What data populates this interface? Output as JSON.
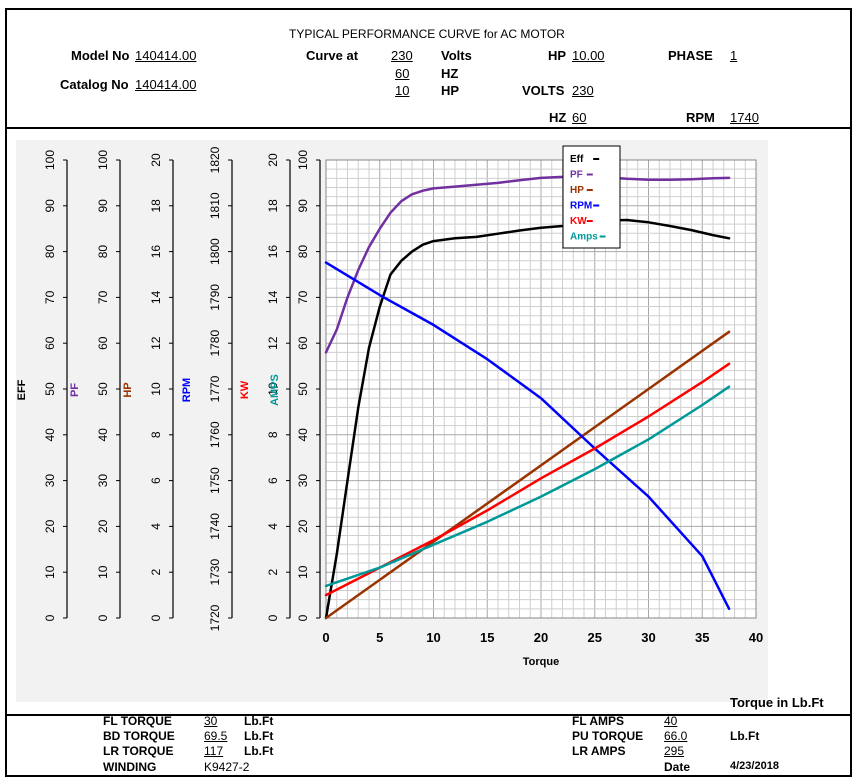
{
  "header": {
    "title": "TYPICAL PERFORMANCE CURVE for AC MOTOR",
    "model_label": "Model No",
    "model_value": "140414.00",
    "catalog_label": "Catalog No",
    "catalog_value": "140414.00",
    "curve_at_label": "Curve at",
    "curve_volts_value": "230",
    "curve_volts_unit": "Volts",
    "curve_hz_value": "60",
    "curve_hz_unit": "HZ",
    "curve_hp_value": "10",
    "curve_hp_unit": "HP",
    "hp_label": "HP",
    "hp_value": "10.00",
    "phase_label": "PHASE",
    "phase_value": "1",
    "volts_label": "VOLTS",
    "volts_value": "230",
    "hz_label": "HZ",
    "hz_value": "60",
    "rpm_label": "RPM",
    "rpm_value": "1740"
  },
  "footer": {
    "fl_torque_label": "FL TORQUE",
    "fl_torque_value": "30",
    "fl_torque_unit": "Lb.Ft",
    "bd_torque_label": "BD TORQUE",
    "bd_torque_value": "69.5",
    "bd_torque_unit": "Lb.Ft",
    "lr_torque_label": "LR TORQUE",
    "lr_torque_value": "117",
    "lr_torque_unit": "Lb.Ft",
    "winding_label": "WINDING",
    "winding_value": "K9427-2",
    "fl_amps_label": "FL AMPS",
    "fl_amps_value": "40",
    "pu_torque_label": "PU TORQUE",
    "pu_torque_value": "66.0",
    "pu_torque_unit": "Lb.Ft",
    "lr_amps_label": "LR AMPS",
    "lr_amps_value": "295",
    "date_label": "Date",
    "date_value": "4/23/2018"
  },
  "torque_note": "Torque in Lb.Ft",
  "chart_data": {
    "type": "line",
    "xlabel": "Torque",
    "xlim": [
      0,
      40
    ],
    "x_ticks": [
      "0",
      "5",
      "10",
      "15",
      "20",
      "25",
      "30",
      "35",
      "40"
    ],
    "grid": true,
    "legend_position": "top-center",
    "axes": [
      {
        "label": "EFF",
        "color": "#000000",
        "min": 0,
        "max": 100,
        "ticks": [
          "0",
          "10",
          "20",
          "30",
          "40",
          "50",
          "60",
          "70",
          "80",
          "90",
          "100"
        ]
      },
      {
        "label": "PF",
        "color": "#7030a0",
        "min": 0,
        "max": 100,
        "ticks": [
          "0",
          "10",
          "20",
          "30",
          "40",
          "50",
          "60",
          "70",
          "80",
          "90",
          "100"
        ]
      },
      {
        "label": "HP",
        "color": "#993300",
        "min": 0,
        "max": 20,
        "ticks": [
          "0",
          "2",
          "4",
          "6",
          "8",
          "10",
          "12",
          "14",
          "16",
          "18",
          "20"
        ]
      },
      {
        "label": "RPM",
        "color": "#0000ff",
        "min": 1720,
        "max": 1820,
        "ticks": [
          "1720",
          "1730",
          "1740",
          "1750",
          "1760",
          "1770",
          "1780",
          "1790",
          "1800",
          "1810",
          "1820"
        ]
      },
      {
        "label": "KW",
        "color": "#ff0000",
        "min": 0,
        "max": 20,
        "ticks": [
          "0",
          "2",
          "4",
          "6",
          "8",
          "10",
          "12",
          "14",
          "16",
          "18",
          "20"
        ]
      },
      {
        "label": "AMPS",
        "color": "#009999",
        "min": 0,
        "max": 100,
        "ticks": [
          "0",
          "10",
          "20",
          "30",
          "40",
          "50",
          "60",
          "70",
          "80",
          "90",
          "100"
        ]
      }
    ],
    "series": [
      {
        "name": "Eff",
        "color": "#000000",
        "axis": "EFF",
        "points": [
          [
            0,
            0
          ],
          [
            1,
            14
          ],
          [
            2,
            30
          ],
          [
            3,
            46
          ],
          [
            4,
            59
          ],
          [
            5,
            68
          ],
          [
            6,
            75
          ],
          [
            7,
            78
          ],
          [
            8,
            80
          ],
          [
            9,
            81.5
          ],
          [
            10,
            82.3
          ],
          [
            12,
            82.9
          ],
          [
            14,
            83.2
          ],
          [
            16,
            83.9
          ],
          [
            18,
            84.6
          ],
          [
            20,
            85.2
          ],
          [
            22,
            85.6
          ],
          [
            24,
            86.2
          ],
          [
            26,
            86.8
          ],
          [
            28,
            86.9
          ],
          [
            30,
            86.4
          ],
          [
            32,
            85.6
          ],
          [
            34,
            84.7
          ],
          [
            36,
            83.6
          ],
          [
            37.5,
            82.9
          ]
        ]
      },
      {
        "name": "PF",
        "color": "#7030a0",
        "axis": "PF",
        "points": [
          [
            0,
            58
          ],
          [
            1,
            63
          ],
          [
            2,
            70
          ],
          [
            3,
            76
          ],
          [
            4,
            81
          ],
          [
            5,
            85
          ],
          [
            6,
            88.5
          ],
          [
            7,
            91
          ],
          [
            8,
            92.5
          ],
          [
            9,
            93.3
          ],
          [
            10,
            93.8
          ],
          [
            12,
            94.2
          ],
          [
            14,
            94.6
          ],
          [
            16,
            95
          ],
          [
            18,
            95.6
          ],
          [
            20,
            96.1
          ],
          [
            22,
            96.3
          ],
          [
            24,
            96.4
          ],
          [
            26,
            96.2
          ],
          [
            28,
            95.9
          ],
          [
            30,
            95.7
          ],
          [
            32,
            95.7
          ],
          [
            34,
            95.8
          ],
          [
            36,
            96
          ],
          [
            37.5,
            96.1
          ]
        ]
      },
      {
        "name": "HP",
        "color": "#993300",
        "axis": "HP",
        "points": [
          [
            0,
            0
          ],
          [
            37.5,
            12.5
          ]
        ]
      },
      {
        "name": "RPM",
        "color": "#0000ff",
        "axis": "RPM",
        "points": [
          [
            0,
            1797.6
          ],
          [
            5,
            1790.5
          ],
          [
            10,
            1784
          ],
          [
            15,
            1776.5
          ],
          [
            20,
            1768
          ],
          [
            25,
            1757
          ],
          [
            30,
            1746.5
          ],
          [
            35,
            1733.5
          ],
          [
            37.5,
            1722
          ]
        ]
      },
      {
        "name": "KW",
        "color": "#ff0000",
        "axis": "KW",
        "points": [
          [
            0,
            1
          ],
          [
            5,
            2.2
          ],
          [
            10,
            3.4
          ],
          [
            15,
            4.7
          ],
          [
            20,
            6.1
          ],
          [
            25,
            7.4
          ],
          [
            30,
            8.8
          ],
          [
            35,
            10.3
          ],
          [
            37.5,
            11.1
          ]
        ]
      },
      {
        "name": "Amps",
        "color": "#009999",
        "axis": "AMPS",
        "points": [
          [
            0,
            7
          ],
          [
            5,
            11
          ],
          [
            10,
            16
          ],
          [
            15,
            21
          ],
          [
            20,
            26.5
          ],
          [
            25,
            32.5
          ],
          [
            30,
            39
          ],
          [
            35,
            46.5
          ],
          [
            37.5,
            50.5
          ]
        ]
      }
    ]
  }
}
